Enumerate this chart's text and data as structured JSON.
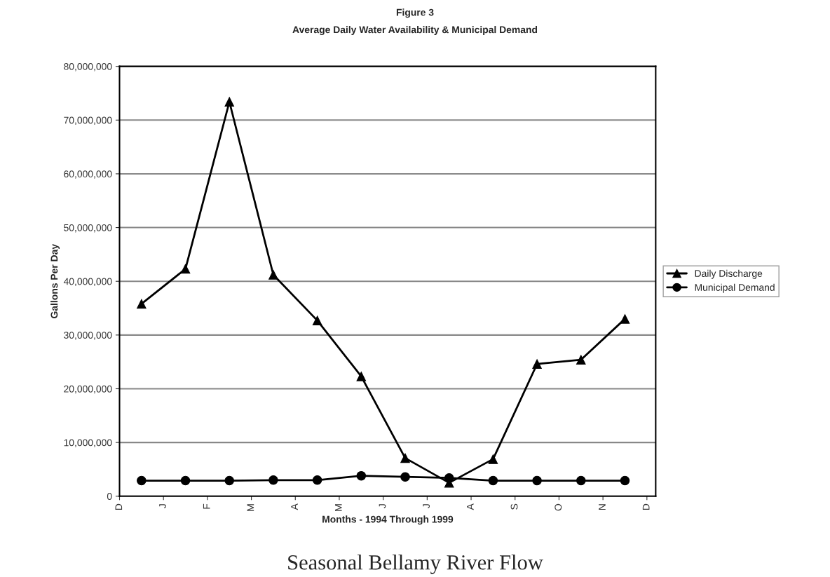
{
  "chart_data": {
    "type": "line",
    "title": "Figure 3",
    "subtitle": "Average Daily Water Availability & Municipal Demand",
    "xlabel": "Months - 1994 Through 1999",
    "ylabel": "Gallons Per Day",
    "annotations": [
      "Seasonal Bellamy River Flow"
    ],
    "categories": [
      "D",
      null,
      "J",
      null,
      "F",
      null,
      "M",
      null,
      "A",
      null,
      "M",
      null,
      "J",
      null,
      "J",
      null,
      "A",
      null,
      "S",
      null,
      "O",
      null,
      "N",
      null,
      "D"
    ],
    "series": [
      {
        "name": "Daily Discharge",
        "color": "#000000",
        "marker": "triangle",
        "values": [
          null,
          35800000,
          null,
          42300000,
          null,
          73400000,
          null,
          41200000,
          null,
          32700000,
          null,
          22300000,
          null,
          7100000,
          null,
          2500000,
          null,
          6900000,
          null,
          24600000,
          null,
          25400000,
          null,
          33000000,
          null
        ]
      },
      {
        "name": "Municipal Demand",
        "color": "#000000",
        "marker": "circle",
        "values": [
          null,
          2900000,
          null,
          2900000,
          null,
          2900000,
          null,
          3000000,
          null,
          3000000,
          null,
          3800000,
          null,
          3600000,
          null,
          3400000,
          null,
          2900000,
          null,
          2900000,
          null,
          2900000,
          null,
          2900000,
          null
        ]
      }
    ],
    "ylim": [
      0,
      80000000
    ],
    "yticks": [
      {
        "value": 0,
        "label": "0"
      },
      {
        "value": 10000000,
        "label": "10,000,000"
      },
      {
        "value": 20000000,
        "label": "20,000,000"
      },
      {
        "value": 30000000,
        "label": "30,000,000"
      },
      {
        "value": 40000000,
        "label": "40,000,000"
      },
      {
        "value": 50000000,
        "label": "50,000,000"
      },
      {
        "value": 60000000,
        "label": "60,000,000"
      },
      {
        "value": 70000000,
        "label": "70,000,000"
      },
      {
        "value": 80000000,
        "label": "80,000,000"
      }
    ],
    "grid": "y",
    "legend": "right"
  }
}
